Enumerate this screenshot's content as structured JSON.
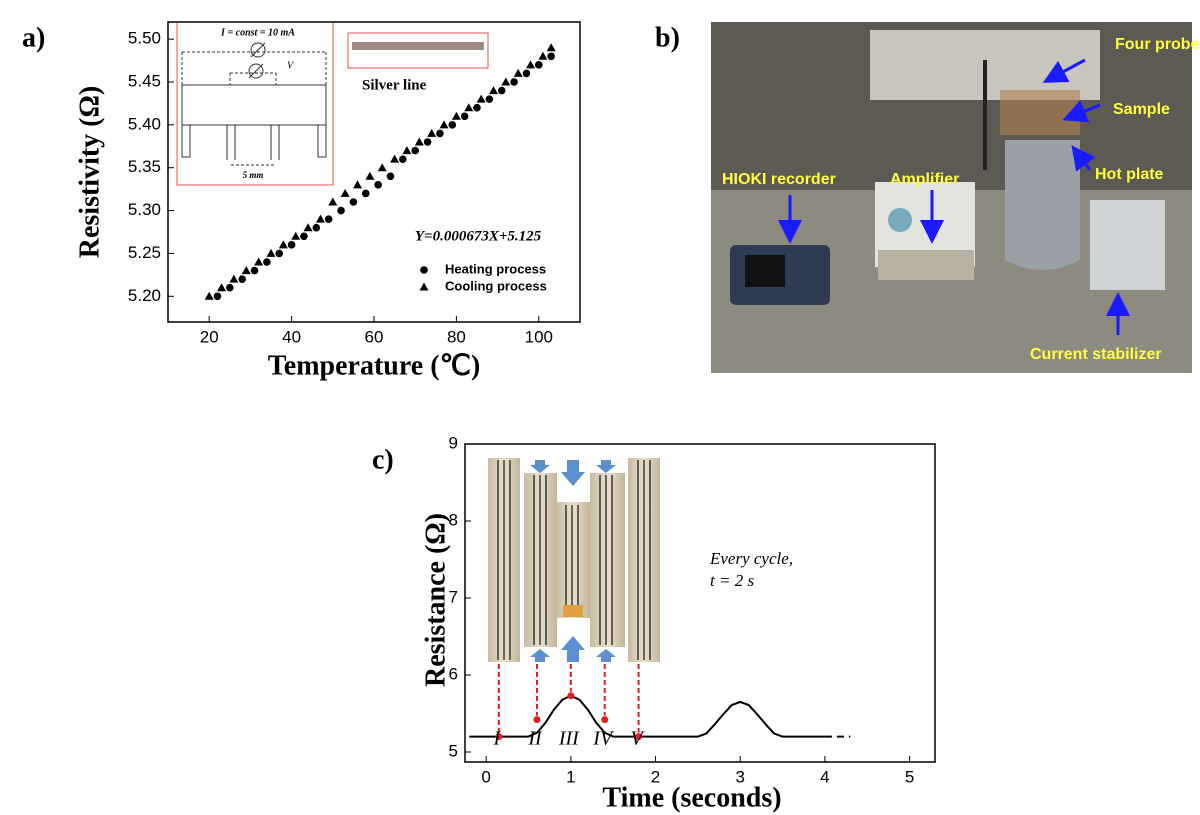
{
  "chart_data": [
    {
      "type": "scatter",
      "label": "a)",
      "x_label": "Temperature (℃)",
      "y_label": "Resistivity (Ω)",
      "xlim": [
        10,
        110
      ],
      "ylim": [
        5.17,
        5.52
      ],
      "xticks": [
        20,
        40,
        60,
        80,
        100
      ],
      "yticks": [
        {
          "value": 5.2,
          "label": "5.20"
        },
        5.25,
        {
          "value": 5.3,
          "label": "5.30"
        },
        5.35,
        {
          "value": 5.4,
          "label": "5.40"
        },
        5.45,
        {
          "value": 5.5,
          "label": "5.50"
        }
      ],
      "legend": "lower right",
      "series": [
        {
          "name": "Heating process",
          "color": "#000000",
          "marker": "circle",
          "x": [
            22,
            25,
            28,
            31,
            34,
            37,
            40,
            43,
            46,
            49,
            52,
            55,
            58,
            61,
            64,
            67,
            70,
            73,
            76,
            79,
            82,
            85,
            88,
            91,
            94,
            97,
            100,
            103
          ],
          "values": [
            5.2,
            5.21,
            5.22,
            5.23,
            5.24,
            5.25,
            5.26,
            5.27,
            5.28,
            5.29,
            5.3,
            5.31,
            5.32,
            5.33,
            5.34,
            5.36,
            5.37,
            5.38,
            5.39,
            5.4,
            5.41,
            5.42,
            5.43,
            5.44,
            5.45,
            5.46,
            5.47,
            5.48
          ]
        },
        {
          "name": "Cooling process",
          "color": "#000000",
          "marker": "triangle",
          "x": [
            20,
            23,
            26,
            29,
            32,
            35,
            38,
            41,
            44,
            47,
            50,
            53,
            56,
            59,
            62,
            65,
            68,
            71,
            74,
            77,
            80,
            83,
            86,
            89,
            92,
            95,
            98,
            101,
            103
          ],
          "values": [
            5.2,
            5.21,
            5.22,
            5.23,
            5.24,
            5.25,
            5.26,
            5.27,
            5.28,
            5.29,
            5.31,
            5.32,
            5.33,
            5.34,
            5.35,
            5.36,
            5.37,
            5.38,
            5.39,
            5.4,
            5.41,
            5.42,
            5.43,
            5.44,
            5.45,
            5.46,
            5.47,
            5.48,
            5.49
          ]
        }
      ],
      "annotations": {
        "equation": "Y=0.000673X+5.125",
        "current": "I = const = 10 mA",
        "voltage": "V",
        "spacing": "5 mm",
        "inset_label": "Silver line"
      }
    },
    {
      "type": "line",
      "label": "c)",
      "x_label": "Time (seconds)",
      "y_label": "Resistance (Ω)",
      "xlim": [
        -0.25,
        5.3
      ],
      "ylim": [
        4.87,
        9
      ],
      "xticks": [
        0,
        1,
        2,
        3,
        4,
        5
      ],
      "yticks": [
        5,
        6,
        7,
        8,
        9
      ],
      "series": [
        {
          "color": "#000000",
          "dashed": false,
          "x": [
            -0.2,
            0,
            0.5,
            0.6,
            0.7,
            0.8,
            0.9,
            1.0,
            1.1,
            1.2,
            1.3,
            1.4,
            1.5,
            2.0,
            2.5,
            2.6,
            2.7,
            2.8,
            2.9,
            3.0,
            3.1,
            3.2,
            3.3,
            3.4,
            3.5,
            4.0
          ],
          "values": [
            5.2,
            5.2,
            5.2,
            5.25,
            5.38,
            5.55,
            5.68,
            5.73,
            5.68,
            5.55,
            5.38,
            5.25,
            5.2,
            5.2,
            5.2,
            5.24,
            5.36,
            5.49,
            5.61,
            5.65,
            5.61,
            5.49,
            5.36,
            5.24,
            5.2,
            5.2
          ]
        },
        {
          "color": "#000000",
          "dashed": true,
          "x": [
            4.0,
            4.3
          ],
          "values": [
            5.2,
            5.2
          ]
        }
      ],
      "markers": {
        "color": "#e02020",
        "x": [
          0.15,
          0.6,
          1.0,
          1.4,
          1.8
        ],
        "values": [
          5.2,
          5.42,
          5.73,
          5.42,
          5.2
        ],
        "labels": [
          "I",
          "II",
          "III",
          "IV",
          "V"
        ]
      },
      "annotations": [
        "Every cycle,",
        "t = 2 s"
      ]
    }
  ],
  "photo": {
    "label": "b)",
    "callouts": [
      "Four probe",
      "Sample",
      "Hot plate",
      "HIOKI recorder",
      "Amplifier",
      "Current stabilizer"
    ]
  }
}
